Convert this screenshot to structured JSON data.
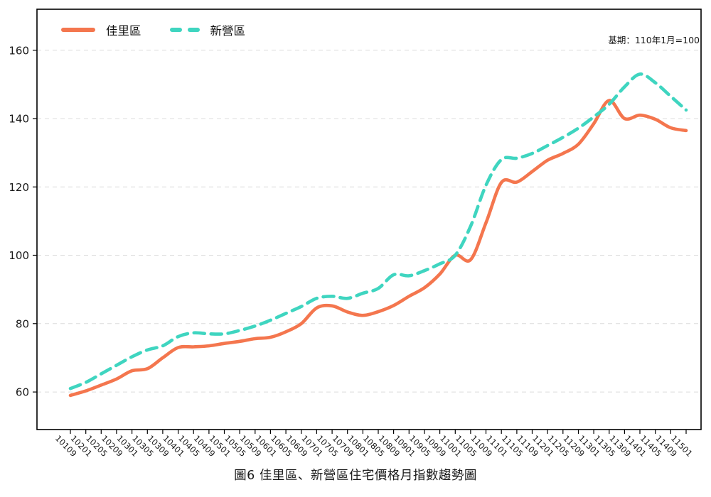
{
  "title": "圖6 佳里區、新營區住宅價格月指數趨勢圖",
  "note": "基期：110年1月=100",
  "legend": {
    "series1_label": "佳里區",
    "series2_label": "新營區"
  },
  "colors": {
    "jiali": "#F4764E",
    "xinying": "#3FD5C0",
    "grid": "#DCDCDC",
    "axis": "#000000",
    "text": "#1A1A1A"
  },
  "chart_data": {
    "type": "line",
    "title": "圖6 佳里區、新營區住宅價格月指數趨勢圖",
    "note": "基期：110年1月=100",
    "xlabel": "",
    "ylabel": "",
    "ylim": [
      49,
      172
    ],
    "y_ticks": [
      60,
      80,
      100,
      120,
      140,
      160
    ],
    "grid": "horizontal-dashed",
    "legend_position": "top-left",
    "x_tick_labels": [
      "10109",
      "10201",
      "10205",
      "10209",
      "10301",
      "10305",
      "10309",
      "10401",
      "10405",
      "10409",
      "10501",
      "10505",
      "10509",
      "10601",
      "10605",
      "10609",
      "10701",
      "10705",
      "10709",
      "10801",
      "10805",
      "10809",
      "10901",
      "10905",
      "10909",
      "11001",
      "11005",
      "11009",
      "11101",
      "11105",
      "11109",
      "11201",
      "11205",
      "11209",
      "11301",
      "11305",
      "11309",
      "11401",
      "11405",
      "11409",
      "11501"
    ],
    "series": [
      {
        "name": "佳里區",
        "color": "#F4764E",
        "style": "solid",
        "values": [
          59.0,
          60.3,
          62.0,
          63.8,
          66.2,
          66.8,
          70.0,
          73.0,
          73.2,
          73.5,
          74.2,
          74.8,
          75.6,
          76.0,
          77.6,
          80.0,
          84.6,
          85.2,
          83.4,
          82.4,
          83.5,
          85.3,
          88.0,
          90.5,
          94.5,
          100.0,
          98.7,
          109.5,
          121.3,
          121.4,
          124.5,
          127.8,
          129.8,
          132.5,
          138.5,
          145.3,
          140.0,
          141.0,
          139.8,
          137.3,
          136.5
        ]
      },
      {
        "name": "新營區",
        "color": "#3FD5C0",
        "style": "dashed",
        "values": [
          61.0,
          62.8,
          65.3,
          67.8,
          70.3,
          72.3,
          73.5,
          76.2,
          77.3,
          77.0,
          77.0,
          78.0,
          79.3,
          81.0,
          83.0,
          85.0,
          87.4,
          88.0,
          87.4,
          88.9,
          90.3,
          94.3,
          94.0,
          95.5,
          97.5,
          100.0,
          108.5,
          120.5,
          128.0,
          128.4,
          129.8,
          132.1,
          134.5,
          137.2,
          140.5,
          144.2,
          149.3,
          153.0,
          150.5,
          146.5,
          142.5
        ]
      }
    ]
  }
}
